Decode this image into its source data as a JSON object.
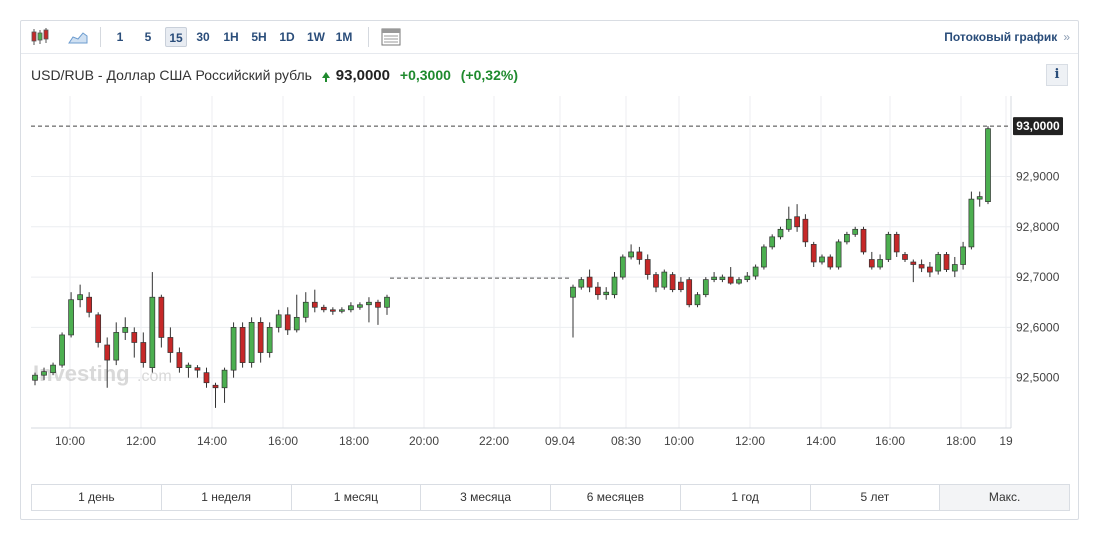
{
  "toolbar": {
    "chart_type_icons": [
      "candlestick-icon",
      "area-chart-icon"
    ],
    "intervals": [
      "1",
      "5",
      "15",
      "30",
      "1H",
      "5H",
      "1D",
      "1W",
      "1M"
    ],
    "active_interval": "15",
    "table_icon": "table-icon",
    "stream_label": "Потоковый график",
    "stream_arrow": "»"
  },
  "header": {
    "name": "USD/RUB - Доллар США Российский рубль",
    "price": "93,0000",
    "change": "+0,3000",
    "change_pct": "(+0,32%)",
    "info_label": "i"
  },
  "watermark": {
    "brand": "Investing",
    "suffix": ".com"
  },
  "ranges": [
    "1 день",
    "1 неделя",
    "1 месяц",
    "3 месяца",
    "6 месяцев",
    "1 год",
    "5 лет",
    "Макс."
  ],
  "colors": {
    "up": "#4caf50",
    "down": "#c62828",
    "grid": "#eceef1",
    "axis_text": "#444444",
    "price_tag_bg": "#222222"
  },
  "chart_data": {
    "type": "candlestick",
    "title": "",
    "ylim": [
      92.4,
      93.06
    ],
    "yticks": [
      92.5,
      92.6,
      92.7,
      92.8,
      92.9
    ],
    "ytick_labels": [
      "92,5000",
      "92,6000",
      "92,7000",
      "92,8000",
      "92,9000"
    ],
    "current_price": 93.0,
    "current_price_label": "93,0000",
    "xtick_labels": [
      "10:00",
      "12:00",
      "14:00",
      "16:00",
      "18:00",
      "20:00",
      "22:00",
      "09.04",
      "08:30",
      "10:00",
      "12:00",
      "14:00",
      "16:00",
      "18:00",
      "19"
    ],
    "gap_value": 92.698,
    "grid": true,
    "candles": [
      [
        92.495,
        92.505,
        92.485,
        92.51
      ],
      [
        92.505,
        92.512,
        92.495,
        92.52
      ],
      [
        92.51,
        92.525,
        92.505,
        92.53
      ],
      [
        92.525,
        92.585,
        92.52,
        92.59
      ],
      [
        92.585,
        92.655,
        92.58,
        92.67
      ],
      [
        92.655,
        92.665,
        92.64,
        92.685
      ],
      [
        92.66,
        92.63,
        92.62,
        92.67
      ],
      [
        92.625,
        92.57,
        92.56,
        92.63
      ],
      [
        92.565,
        92.535,
        92.48,
        92.58
      ],
      [
        92.535,
        92.59,
        92.525,
        92.61
      ],
      [
        92.59,
        92.6,
        92.575,
        92.62
      ],
      [
        92.59,
        92.57,
        92.54,
        92.6
      ],
      [
        92.57,
        92.53,
        92.52,
        92.59
      ],
      [
        92.52,
        92.66,
        92.51,
        92.71
      ],
      [
        92.66,
        92.58,
        92.56,
        92.665
      ],
      [
        92.58,
        92.55,
        92.53,
        92.6
      ],
      [
        92.55,
        92.52,
        92.51,
        92.56
      ],
      [
        92.52,
        92.525,
        92.5,
        92.53
      ],
      [
        92.52,
        92.515,
        92.5,
        92.525
      ],
      [
        92.51,
        92.49,
        92.48,
        92.52
      ],
      [
        92.485,
        92.48,
        92.44,
        92.49
      ],
      [
        92.48,
        92.515,
        92.45,
        92.52
      ],
      [
        92.515,
        92.6,
        92.5,
        92.61
      ],
      [
        92.6,
        92.53,
        92.52,
        92.61
      ],
      [
        92.53,
        92.61,
        92.52,
        92.62
      ],
      [
        92.61,
        92.55,
        92.53,
        92.62
      ],
      [
        92.55,
        92.6,
        92.54,
        92.61
      ],
      [
        92.6,
        92.625,
        92.59,
        92.635
      ],
      [
        92.625,
        92.595,
        92.585,
        92.64
      ],
      [
        92.595,
        92.62,
        92.59,
        92.665
      ],
      [
        92.62,
        92.65,
        92.61,
        92.67
      ],
      [
        92.65,
        92.64,
        92.63,
        92.675
      ],
      [
        92.64,
        92.635,
        92.63,
        92.645
      ],
      [
        92.635,
        92.632,
        92.625,
        92.64
      ],
      [
        92.632,
        92.635,
        92.628,
        92.64
      ],
      [
        92.635,
        92.643,
        92.63,
        92.65
      ],
      [
        92.64,
        92.645,
        92.635,
        92.65
      ],
      [
        92.645,
        92.65,
        92.61,
        92.66
      ],
      [
        92.65,
        92.64,
        92.605,
        92.655
      ],
      [
        92.64,
        92.66,
        92.625,
        92.665
      ],
      [
        92.66,
        92.68,
        92.58,
        92.685
      ],
      [
        92.68,
        92.695,
        92.675,
        92.7
      ],
      [
        92.7,
        92.68,
        92.67,
        92.715
      ],
      [
        92.68,
        92.665,
        92.655,
        92.69
      ],
      [
        92.665,
        92.67,
        92.655,
        92.68
      ],
      [
        92.665,
        92.7,
        92.658,
        92.71
      ],
      [
        92.7,
        92.74,
        92.695,
        92.745
      ],
      [
        92.74,
        92.75,
        92.735,
        92.765
      ],
      [
        92.75,
        92.735,
        92.725,
        92.76
      ],
      [
        92.735,
        92.705,
        92.695,
        92.745
      ],
      [
        92.705,
        92.68,
        92.67,
        92.71
      ],
      [
        92.68,
        92.71,
        92.675,
        92.715
      ],
      [
        92.705,
        92.675,
        92.67,
        92.71
      ],
      [
        92.69,
        92.675,
        92.67,
        92.7
      ],
      [
        92.695,
        92.645,
        92.64,
        92.7
      ],
      [
        92.645,
        92.665,
        92.64,
        92.67
      ],
      [
        92.665,
        92.695,
        92.66,
        92.7
      ],
      [
        92.695,
        92.7,
        92.69,
        92.71
      ],
      [
        92.695,
        92.7,
        92.69,
        92.705
      ],
      [
        92.7,
        92.688,
        92.685,
        92.72
      ],
      [
        92.688,
        92.695,
        92.685,
        92.7
      ],
      [
        92.695,
        92.702,
        92.69,
        92.71
      ],
      [
        92.702,
        92.72,
        92.695,
        92.725
      ],
      [
        92.72,
        92.76,
        92.715,
        92.765
      ],
      [
        92.76,
        92.78,
        92.755,
        92.785
      ],
      [
        92.78,
        92.795,
        92.775,
        92.8
      ],
      [
        92.795,
        92.815,
        92.79,
        92.84
      ],
      [
        92.82,
        92.8,
        92.79,
        92.845
      ],
      [
        92.815,
        92.77,
        92.76,
        92.825
      ],
      [
        92.765,
        92.73,
        92.72,
        92.77
      ],
      [
        92.73,
        92.74,
        92.725,
        92.745
      ],
      [
        92.74,
        92.72,
        92.715,
        92.745
      ],
      [
        92.72,
        92.77,
        92.715,
        92.775
      ],
      [
        92.77,
        92.785,
        92.765,
        92.79
      ],
      [
        92.785,
        92.795,
        92.78,
        92.8
      ],
      [
        92.795,
        92.75,
        92.745,
        92.8
      ],
      [
        92.735,
        92.72,
        92.715,
        92.75
      ],
      [
        92.72,
        92.735,
        92.715,
        92.745
      ],
      [
        92.735,
        92.785,
        92.73,
        92.79
      ],
      [
        92.785,
        92.75,
        92.74,
        92.79
      ],
      [
        92.745,
        92.735,
        92.73,
        92.75
      ],
      [
        92.73,
        92.725,
        92.69,
        92.735
      ],
      [
        92.725,
        92.718,
        92.71,
        92.735
      ],
      [
        92.72,
        92.71,
        92.7,
        92.73
      ],
      [
        92.712,
        92.745,
        92.705,
        92.75
      ],
      [
        92.745,
        92.715,
        92.71,
        92.75
      ],
      [
        92.712,
        92.725,
        92.7,
        92.74
      ],
      [
        92.725,
        92.76,
        92.715,
        92.77
      ],
      [
        92.76,
        92.855,
        92.755,
        92.87
      ],
      [
        92.855,
        92.86,
        92.84,
        92.87
      ],
      [
        92.85,
        92.995,
        92.845,
        93.0
      ]
    ]
  }
}
